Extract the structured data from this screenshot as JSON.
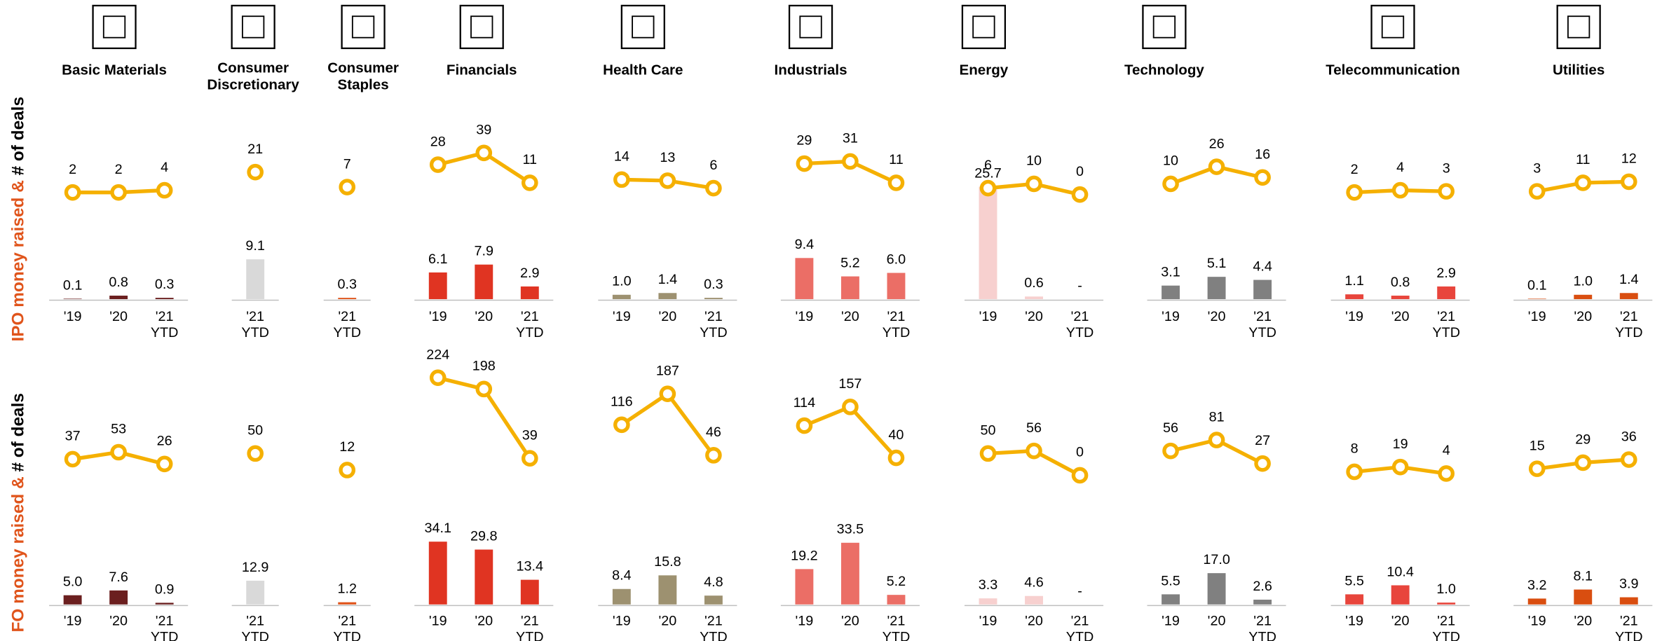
{
  "chart_data": {
    "type": "small-multiples",
    "deals_color": "#f5b000",
    "row_labels": [
      {
        "money": "IPO money raised &",
        "deals": "# of deals"
      },
      {
        "money": "FO money raised &",
        "deals": "# of deals"
      }
    ],
    "row_label_color": "#e0541b",
    "ipo_deals_ylim": [
      0,
      40
    ],
    "ipo_money_ylim": [
      0,
      30
    ],
    "fo_deals_ylim": [
      0,
      250
    ],
    "fo_money_ylim": [
      0,
      40
    ],
    "sectors": [
      {
        "name": [
          "Basic Materials"
        ],
        "color": "#6b1f1f",
        "categories": [
          [
            "'19"
          ],
          [
            "'20"
          ],
          [
            "'21",
            "YTD"
          ]
        ],
        "ipo": {
          "deals": [
            2,
            2,
            4
          ],
          "money": [
            0.1,
            0.8,
            0.3
          ],
          "value_labels": [
            "0.1",
            "0.8",
            "0.3"
          ]
        },
        "fo": {
          "deals": [
            37,
            53,
            26
          ],
          "money": [
            5.0,
            7.6,
            0.9
          ],
          "value_labels": [
            "5.0",
            "7.6",
            "0.9"
          ]
        }
      },
      {
        "name": [
          "Consumer",
          "Discretionary"
        ],
        "color": "#d9d9d9",
        "categories": [
          [
            "'21",
            "YTD"
          ]
        ],
        "ipo": {
          "deals": [
            21
          ],
          "money": [
            9.1
          ],
          "value_labels": [
            "9.1"
          ]
        },
        "fo": {
          "deals": [
            50
          ],
          "money": [
            12.9
          ],
          "value_labels": [
            "12.9"
          ]
        }
      },
      {
        "name": [
          "Consumer",
          "Staples"
        ],
        "color": "#e0541b",
        "categories": [
          [
            "'21",
            "YTD"
          ]
        ],
        "ipo": {
          "deals": [
            7
          ],
          "money": [
            0.3
          ],
          "value_labels": [
            "0.3"
          ]
        },
        "fo": {
          "deals": [
            12
          ],
          "money": [
            1.2
          ],
          "value_labels": [
            "1.2"
          ]
        }
      },
      {
        "name": [
          "Financials"
        ],
        "color": "#e03422",
        "categories": [
          [
            "'19"
          ],
          [
            "'20"
          ],
          [
            "'21",
            "YTD"
          ]
        ],
        "ipo": {
          "deals": [
            28,
            39,
            11
          ],
          "money": [
            6.1,
            7.9,
            2.9
          ],
          "value_labels": [
            "6.1",
            "7.9",
            "2.9"
          ]
        },
        "fo": {
          "deals": [
            224,
            198,
            39
          ],
          "money": [
            34.1,
            29.8,
            13.4
          ],
          "value_labels": [
            "34.1",
            "29.8",
            "13.4"
          ]
        }
      },
      {
        "name": [
          "Health Care"
        ],
        "color": "#9d9170",
        "categories": [
          [
            "'19"
          ],
          [
            "'20"
          ],
          [
            "'21",
            "YTD"
          ]
        ],
        "ipo": {
          "deals": [
            14,
            13,
            6
          ],
          "money": [
            1.0,
            1.4,
            0.3
          ],
          "value_labels": [
            "1.0",
            "1.4",
            "0.3"
          ]
        },
        "fo": {
          "deals": [
            116,
            187,
            46
          ],
          "money": [
            8.4,
            15.8,
            4.8
          ],
          "value_labels": [
            "8.4",
            "15.8",
            "4.8"
          ]
        }
      },
      {
        "name": [
          "Industrials"
        ],
        "color": "#eb6e66",
        "categories": [
          [
            "'19"
          ],
          [
            "'20"
          ],
          [
            "'21",
            "YTD"
          ]
        ],
        "ipo": {
          "deals": [
            29,
            31,
            11
          ],
          "money": [
            9.4,
            5.2,
            6.0
          ],
          "value_labels": [
            "9.4",
            "5.2",
            "6.0"
          ]
        },
        "fo": {
          "deals": [
            114,
            157,
            40
          ],
          "money": [
            19.2,
            33.5,
            5.2
          ],
          "value_labels": [
            "19.2",
            "33.5",
            "5.2"
          ]
        }
      },
      {
        "name": [
          "Energy"
        ],
        "color": "#f7d0cf",
        "categories": [
          [
            "'19"
          ],
          [
            "'20"
          ],
          [
            "'21",
            "YTD"
          ]
        ],
        "ipo": {
          "deals": [
            6,
            10,
            0
          ],
          "money": [
            25.7,
            0.6,
            0
          ],
          "value_labels": [
            "25.7",
            "0.6",
            "-"
          ]
        },
        "fo": {
          "deals": [
            50,
            56,
            0
          ],
          "money": [
            3.3,
            4.6,
            0
          ],
          "value_labels": [
            "3.3",
            "4.6",
            "-"
          ]
        }
      },
      {
        "name": [
          "Technology"
        ],
        "color": "#808080",
        "categories": [
          [
            "'19"
          ],
          [
            "'20"
          ],
          [
            "'21",
            "YTD"
          ]
        ],
        "ipo": {
          "deals": [
            10,
            26,
            16
          ],
          "money": [
            3.1,
            5.1,
            4.4
          ],
          "value_labels": [
            "3.1",
            "5.1",
            "4.4"
          ]
        },
        "fo": {
          "deals": [
            56,
            81,
            27
          ],
          "money": [
            5.5,
            17.0,
            2.6
          ],
          "value_labels": [
            "5.5",
            "17.0",
            "2.6"
          ]
        }
      },
      {
        "name": [
          "Telecommunication"
        ],
        "color": "#e8453c",
        "categories": [
          [
            "'19"
          ],
          [
            "'20"
          ],
          [
            "'21",
            "YTD"
          ]
        ],
        "ipo": {
          "deals": [
            2,
            4,
            3
          ],
          "money": [
            1.1,
            0.8,
            2.9
          ],
          "value_labels": [
            "1.1",
            "0.8",
            "2.9"
          ]
        },
        "fo": {
          "deals": [
            8,
            19,
            4
          ],
          "money": [
            5.5,
            10.4,
            1.0
          ],
          "value_labels": [
            "5.5",
            "10.4",
            "1.0"
          ]
        }
      },
      {
        "name": [
          "Utilities"
        ],
        "color": "#d94e10",
        "categories": [
          [
            "'19"
          ],
          [
            "'20"
          ],
          [
            "'21",
            "YTD"
          ]
        ],
        "ipo": {
          "deals": [
            3,
            11,
            12
          ],
          "money": [
            0.1,
            1.0,
            1.4
          ],
          "value_labels": [
            "0.1",
            "1.0",
            "1.4"
          ]
        },
        "fo": {
          "deals": [
            15,
            29,
            36
          ],
          "money": [
            3.2,
            8.1,
            3.9
          ],
          "value_labels": [
            "3.2",
            "8.1",
            "3.9"
          ]
        }
      }
    ]
  }
}
